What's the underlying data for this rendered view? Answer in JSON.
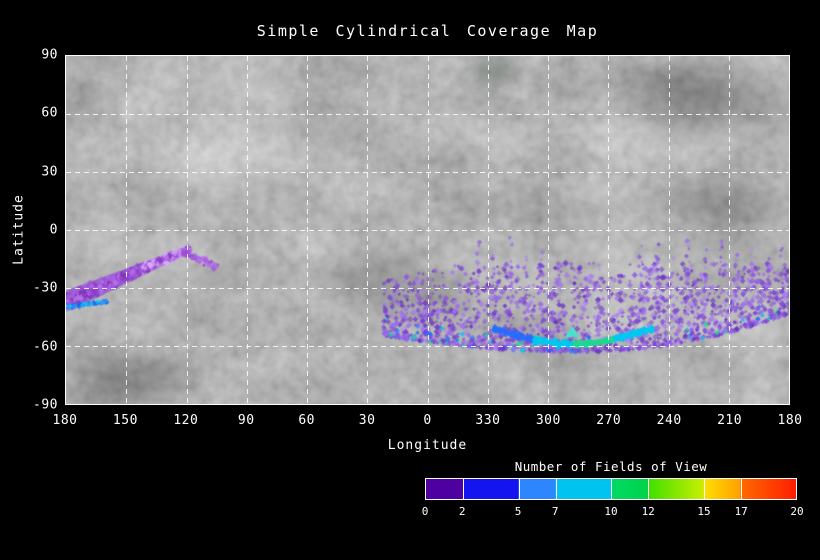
{
  "chart": {
    "title": "Simple Cylindrical Coverage Map",
    "xlabel": "Longitude",
    "ylabel": "Latitude"
  },
  "chart_data": {
    "type": "heatmap",
    "title": "Simple Cylindrical Coverage Map",
    "xlabel": "Longitude",
    "ylabel": "Latitude",
    "x_tick_labels": [
      "180",
      "150",
      "120",
      "90",
      "60",
      "30",
      "0",
      "330",
      "300",
      "270",
      "240",
      "210",
      "180"
    ],
    "x_tick_values": [
      180,
      150,
      120,
      90,
      60,
      30,
      0,
      330,
      300,
      270,
      240,
      210,
      180
    ],
    "y_tick_labels": [
      "90",
      "60",
      "30",
      "0",
      "-30",
      "-60",
      "-90"
    ],
    "y_tick_values": [
      90,
      60,
      30,
      0,
      -30,
      -60,
      -90
    ],
    "y_range": [
      -90,
      90
    ],
    "grid": "white dashed lines every 30 degrees",
    "basemap": "grayscale simple-cylindrical planetary mosaic",
    "colorbar": {
      "label": "Number of Fields of View",
      "tick_values": [
        0,
        2,
        5,
        7,
        10,
        12,
        15,
        17,
        20
      ],
      "tick_labels": [
        "0",
        "2",
        "5",
        "7",
        "10",
        "12",
        "15",
        "17",
        "20"
      ],
      "range": [
        0,
        20
      ],
      "gradient_stops": [
        [
          0,
          "#4f00a0"
        ],
        [
          0.099,
          "#4f00a0"
        ],
        [
          0.101,
          "#1414f0"
        ],
        [
          0.249,
          "#1414f0"
        ],
        [
          0.251,
          "#2e86ff"
        ],
        [
          0.349,
          "#2e86ff"
        ],
        [
          0.351,
          "#00c3f0"
        ],
        [
          0.499,
          "#00c3f0"
        ],
        [
          0.501,
          "#00d964"
        ],
        [
          0.599,
          "#00d34b"
        ],
        [
          0.601,
          "#3fe000"
        ],
        [
          0.749,
          "#c8ee00"
        ],
        [
          0.751,
          "#ffdf00"
        ],
        [
          0.849,
          "#ffa000"
        ],
        [
          0.851,
          "#ff6a00"
        ],
        [
          0.999,
          "#ff1e00"
        ],
        [
          1,
          "#ff0000"
        ]
      ]
    },
    "coverage": {
      "description": "Fields-of-view footprints plotted over the basemap; u = degrees east of the left frame edge (left edge = lon 180 through lon 0 at center back to lon 180). Most coverage is 1-5 FOV (purple/blue); a cyan-green arc near lat -52..-60 reaches ~10-15 FOV.",
      "clusters": [
        {
          "type": "streak",
          "name": "west-streak-core",
          "core": true,
          "u0": 0,
          "u1": 61,
          "lat_at_u0": -37,
          "lat_at_u1": -10,
          "spread": 3.4,
          "taper": true,
          "count": 620,
          "size": 3.4,
          "palette": [
            "#9a4fd2",
            "#8a3fc8",
            "#a95fe0",
            "#b874ec",
            "#7a34b4"
          ],
          "bright": [
            "#d49cf7",
            "#e0b2ff",
            "#c78cf5"
          ]
        },
        {
          "type": "streak",
          "name": "west-tip-scatter",
          "u0": 58,
          "u1": 76,
          "lat_at_u0": -12,
          "lat_at_u1": -19,
          "spread": 2.2,
          "count": 70,
          "size": 3,
          "palette": [
            "#a95fe0",
            "#b874ec",
            "#9a4fd2"
          ]
        },
        {
          "type": "streak",
          "name": "west-cyan-underline",
          "u0": 0,
          "u1": 21,
          "lat_at_u0": -40,
          "lat_at_u1": -37,
          "spread": 1.1,
          "count": 110,
          "size": 2.6,
          "palette": [
            "#2f7dff",
            "#00c3f0",
            "#3e8bff",
            "#25d5f0",
            "#1e5fe0"
          ]
        },
        {
          "type": "fan",
          "name": "south-coverage-fan",
          "u0": 158,
          "u1": 360,
          "bottom_center_u": 255,
          "bottom_lat": -63,
          "bottom_curve_left": 0.0009,
          "bottom_curve_right": 0.0018,
          "top_lat": -17,
          "top_lat_at_u0": -26,
          "top_flat_from_u": 200,
          "count": 1700,
          "size": 3.1,
          "palette": [
            "#8a55e0",
            "#7a3fd4",
            "#9966f0",
            "#6a30c0",
            "#a878f2",
            "#7746cc"
          ],
          "accent_palette": [
            "#2a6cff",
            "#00c8f0",
            "#20d890",
            "#3d7dff"
          ],
          "accent_chance": 0.09
        },
        {
          "type": "columns",
          "name": "north-reaching-rays",
          "bottom": -44,
          "step": 2.2,
          "jitter": 2.4,
          "size": 2.7,
          "palette": [
            "#8a55e0",
            "#9966f0",
            "#7a3fd4",
            "#a878f2"
          ],
          "columns": [
            {
              "u": 205,
              "top": -6
            },
            {
              "u": 213,
              "top": -10
            },
            {
              "u": 221,
              "top": -4
            },
            {
              "u": 229,
              "top": -12
            },
            {
              "u": 237,
              "top": -7
            },
            {
              "u": 246,
              "top": -14
            },
            {
              "u": 286,
              "top": -8
            },
            {
              "u": 294,
              "top": -5
            },
            {
              "u": 302,
              "top": -12
            },
            {
              "u": 310,
              "top": -6
            },
            {
              "u": 318,
              "top": -10
            },
            {
              "u": 326,
              "top": -4
            },
            {
              "u": 334,
              "top": -9
            },
            {
              "u": 342,
              "top": -6
            },
            {
              "u": 350,
              "top": -11
            },
            {
              "u": 357,
              "top": -7
            }
          ]
        },
        {
          "type": "arc",
          "name": "south-arc-highlight",
          "u0": 213,
          "u1": 292,
          "lat0": -51,
          "dip": -8,
          "spread": 1.6,
          "count": 430,
          "palette_stops": [
            "#2a6cff",
            "#00c8f0",
            "#20d890",
            "#00c8f0"
          ]
        },
        {
          "type": "marker",
          "name": "cyan-peak-marker",
          "u": 252,
          "lat": -53,
          "size": 9,
          "color": "#40e8d0"
        }
      ]
    }
  },
  "colors": {
    "background": "#000000",
    "frame": "#ffffff",
    "text": "#ffffff",
    "basemap_mean_gray": "#6e6e6e"
  }
}
